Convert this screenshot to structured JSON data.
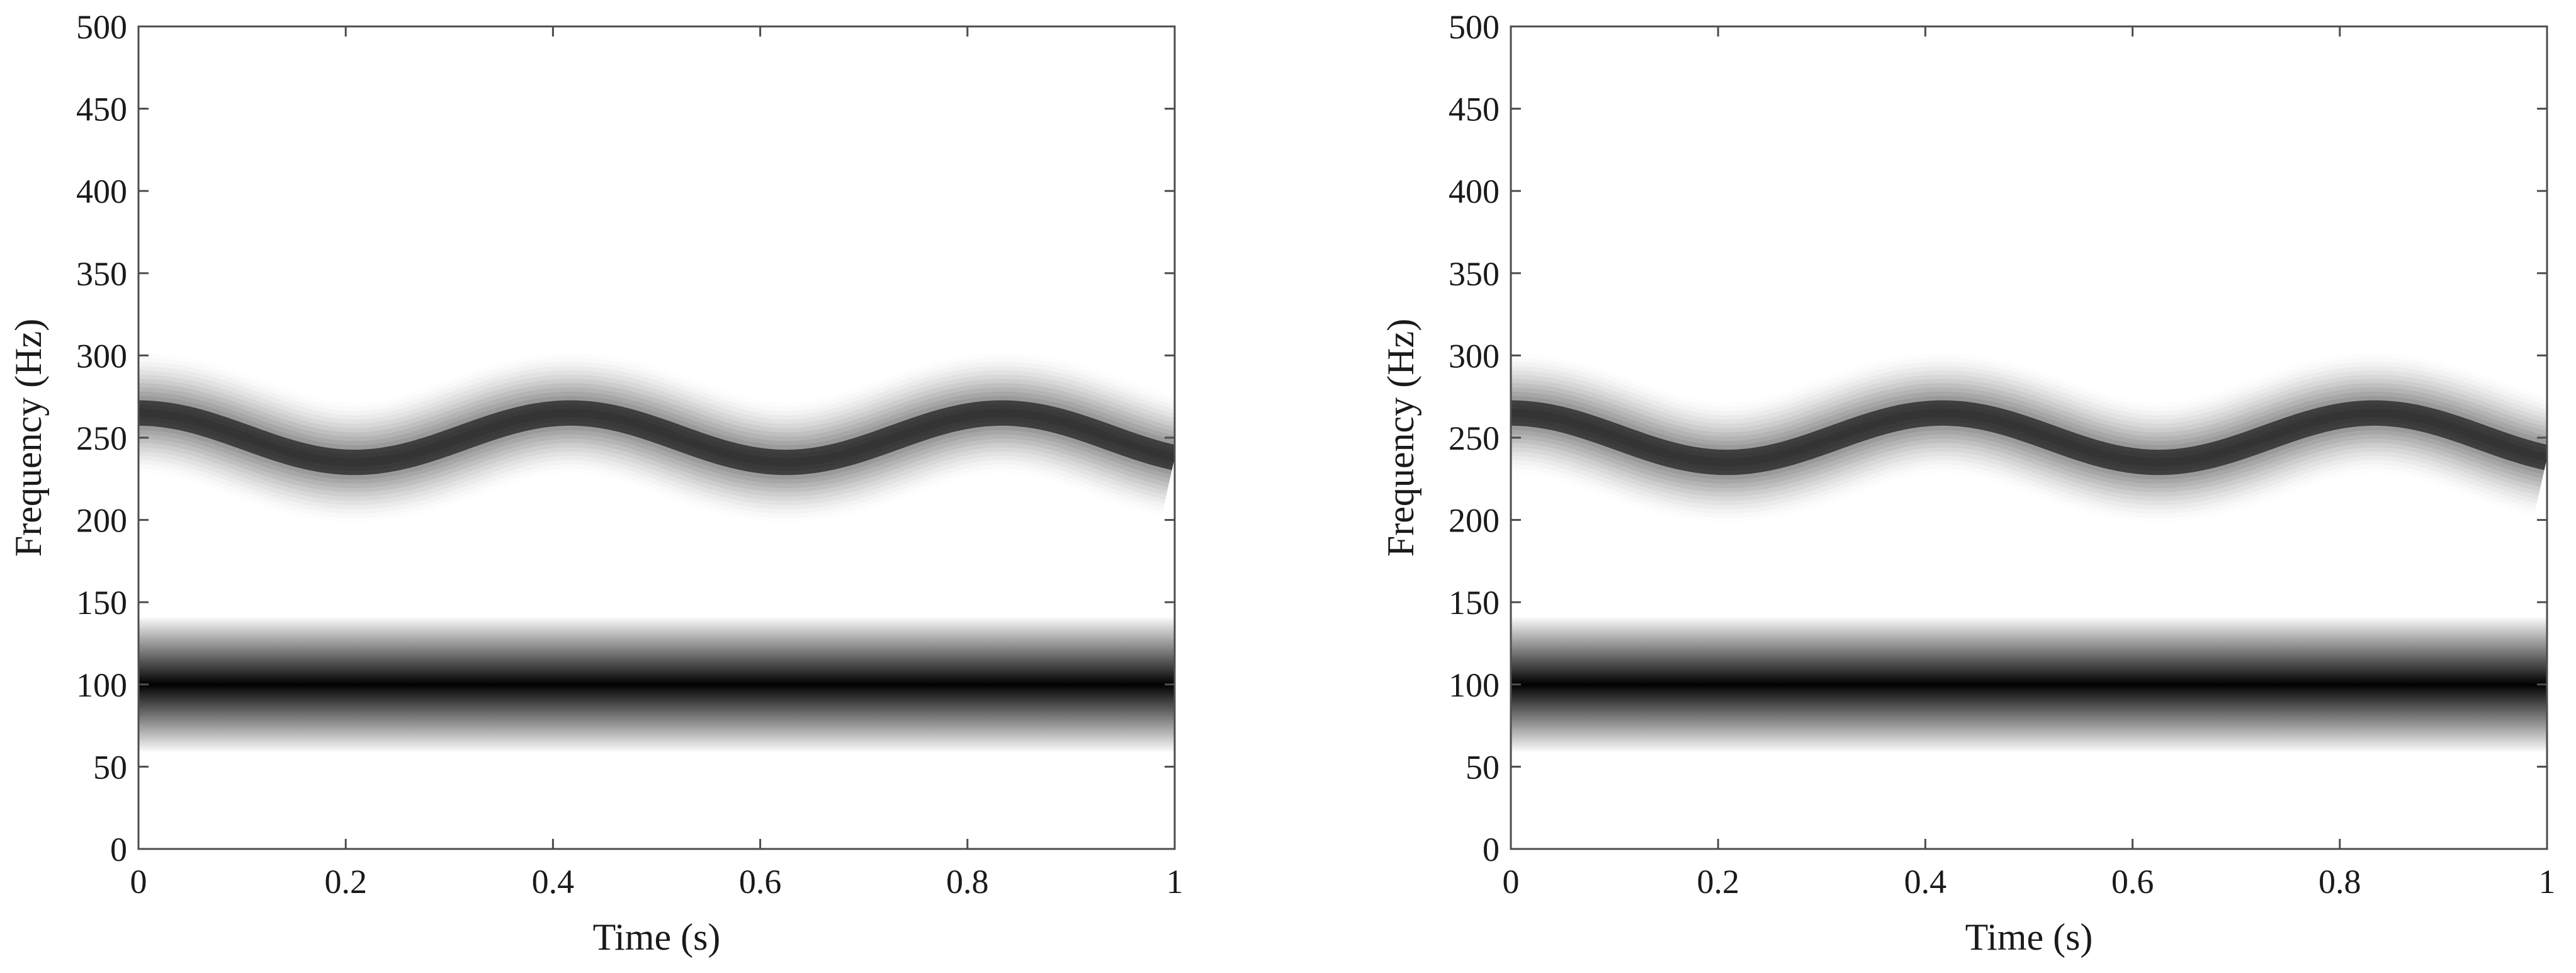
{
  "chart_data": [
    {
      "type": "heatmap",
      "colormap": "gray-reversed",
      "xlabel": "Time (s)",
      "ylabel": "Frequency (Hz)",
      "xlim": [
        0,
        1
      ],
      "ylim": [
        0,
        500
      ],
      "xticks": [
        0,
        0.2,
        0.4,
        0.6,
        0.8,
        1
      ],
      "xtick_labels": [
        "0",
        "0.2",
        "0.4",
        "0.6",
        "0.8",
        "1"
      ],
      "yticks": [
        0,
        50,
        100,
        150,
        200,
        250,
        300,
        350,
        400,
        450,
        500
      ],
      "ytick_labels": [
        "0",
        "50",
        "100",
        "150",
        "200",
        "250",
        "300",
        "350",
        "400",
        "450",
        "500"
      ],
      "grid": false,
      "components": [
        {
          "kind": "constant",
          "frequency_hz": 100,
          "spread_hz": 16
        },
        {
          "kind": "sinusoidal",
          "center_hz": 250,
          "amplitude_hz": 15,
          "modulation_hz": 2.4,
          "phase_deg": 90,
          "spread_hz": 14
        }
      ]
    },
    {
      "type": "heatmap",
      "colormap": "gray-reversed",
      "xlabel": "Time (s)",
      "ylabel": "Frequency (Hz)",
      "xlim": [
        0,
        1
      ],
      "ylim": [
        0,
        500
      ],
      "xticks": [
        0,
        0.2,
        0.4,
        0.6,
        0.8,
        1
      ],
      "xtick_labels": [
        "0",
        "0.2",
        "0.4",
        "0.6",
        "0.8",
        "1"
      ],
      "yticks": [
        0,
        50,
        100,
        150,
        200,
        250,
        300,
        350,
        400,
        450,
        500
      ],
      "ytick_labels": [
        "0",
        "50",
        "100",
        "150",
        "200",
        "250",
        "300",
        "350",
        "400",
        "450",
        "500"
      ],
      "grid": false,
      "components": [
        {
          "kind": "constant",
          "frequency_hz": 100,
          "spread_hz": 16
        },
        {
          "kind": "sinusoidal",
          "center_hz": 250,
          "amplitude_hz": 15,
          "modulation_hz": 2.4,
          "phase_deg": 90,
          "spread_hz": 14
        }
      ]
    }
  ]
}
